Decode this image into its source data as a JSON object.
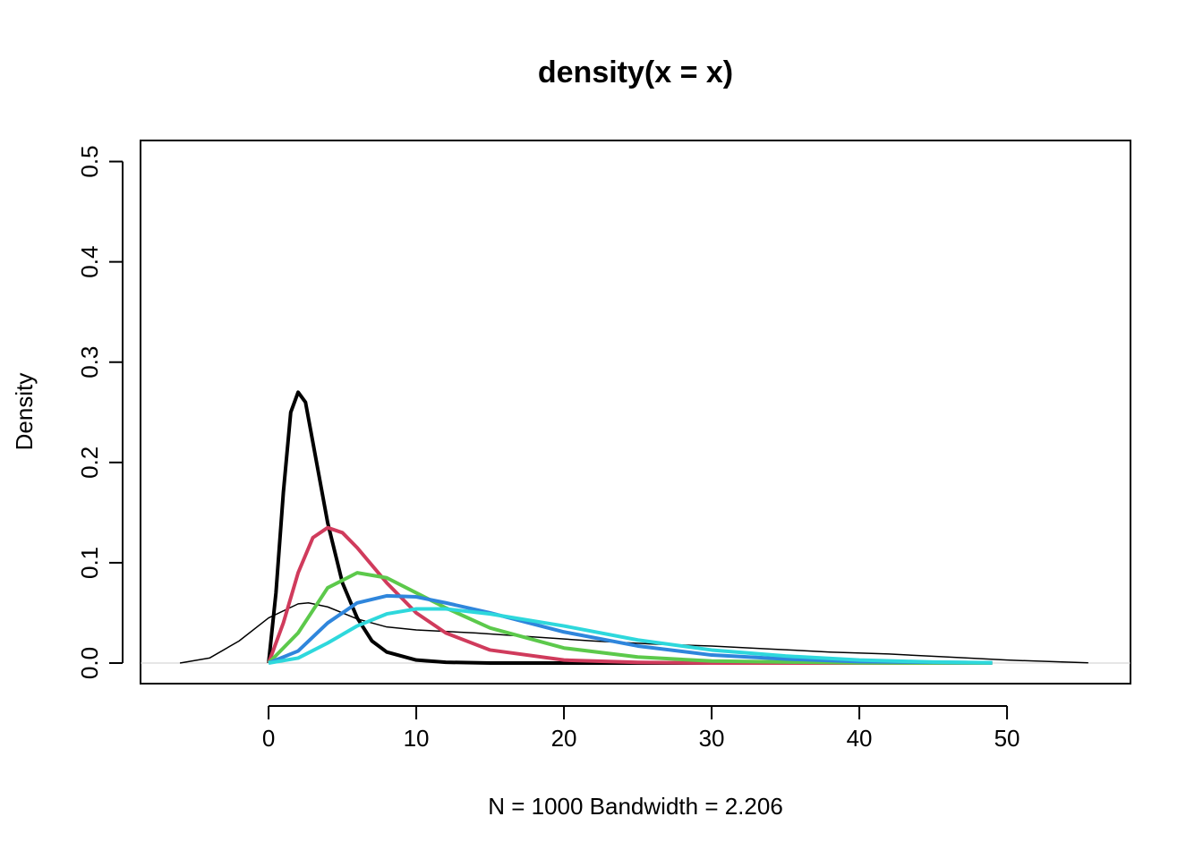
{
  "chart_data": {
    "type": "line",
    "title": "density(x = x)",
    "xlabel": "N = 1000   Bandwidth = 2.206",
    "ylabel": "Density",
    "xlim": [
      -8.67,
      58.36
    ],
    "ylim": [
      -0.0205,
      0.521
    ],
    "xticks": [
      0,
      10,
      20,
      30,
      40,
      50
    ],
    "yticks": [
      {
        "value": 0,
        "label": "0.0"
      },
      {
        "value": 0.1,
        "label": "0.1"
      },
      {
        "value": 0.2,
        "label": "0.2"
      },
      {
        "value": 0.3,
        "label": "0.3"
      },
      {
        "value": 0.4,
        "label": "0.4"
      },
      {
        "value": 0.5,
        "label": "0.5"
      }
    ],
    "series": [
      {
        "color": "#000000",
        "width": 1.5,
        "x": [
          -6,
          -4,
          -2,
          0,
          2,
          2.7,
          4,
          6,
          8,
          10,
          14,
          18,
          22,
          26,
          30,
          34,
          38,
          42,
          46,
          50,
          55.5
        ],
        "values": [
          0,
          0.005,
          0.022,
          0.045,
          0.059,
          0.06,
          0.056,
          0.044,
          0.036,
          0.033,
          0.03,
          0.026,
          0.022,
          0.019,
          0.017,
          0.014,
          0.011,
          0.009,
          0.006,
          0.003,
          0.0002
        ]
      },
      {
        "color": "#000000",
        "width": 4,
        "x": [
          0,
          0.5,
          1,
          1.5,
          2,
          2.5,
          3,
          4,
          5,
          6,
          7,
          8,
          10,
          12,
          15,
          49
        ],
        "values": [
          0,
          0.07,
          0.17,
          0.25,
          0.27,
          0.26,
          0.22,
          0.14,
          0.08,
          0.045,
          0.022,
          0.011,
          0.003,
          0.0008,
          0,
          0
        ]
      },
      {
        "color": "#d03b5c",
        "width": 4,
        "x": [
          0,
          1,
          2,
          3,
          4,
          5,
          6,
          8,
          10,
          12,
          15,
          20,
          25,
          30,
          49
        ],
        "values": [
          0,
          0.04,
          0.09,
          0.125,
          0.135,
          0.13,
          0.115,
          0.08,
          0.05,
          0.03,
          0.013,
          0.003,
          0.0007,
          0,
          0
        ]
      },
      {
        "color": "#5cc94b",
        "width": 4,
        "x": [
          0,
          2,
          4,
          6,
          8,
          10,
          12,
          15,
          20,
          25,
          30,
          40,
          49
        ],
        "values": [
          0,
          0.03,
          0.075,
          0.09,
          0.085,
          0.07,
          0.055,
          0.035,
          0.015,
          0.006,
          0.002,
          0.0002,
          0
        ]
      },
      {
        "color": "#2f86dc",
        "width": 4,
        "x": [
          0,
          2,
          4,
          6,
          8,
          10,
          12,
          15,
          20,
          25,
          30,
          35,
          40,
          49
        ],
        "values": [
          0,
          0.012,
          0.04,
          0.06,
          0.067,
          0.066,
          0.06,
          0.05,
          0.031,
          0.017,
          0.008,
          0.004,
          0.0015,
          0.0002
        ]
      },
      {
        "color": "#2ed8dc",
        "width": 4,
        "x": [
          0,
          2,
          4,
          6,
          8,
          10,
          12,
          15,
          20,
          25,
          30,
          35,
          40,
          45,
          49
        ],
        "values": [
          0,
          0.005,
          0.02,
          0.037,
          0.049,
          0.054,
          0.054,
          0.049,
          0.037,
          0.023,
          0.013,
          0.007,
          0.003,
          0.001,
          0.0004
        ]
      }
    ]
  }
}
